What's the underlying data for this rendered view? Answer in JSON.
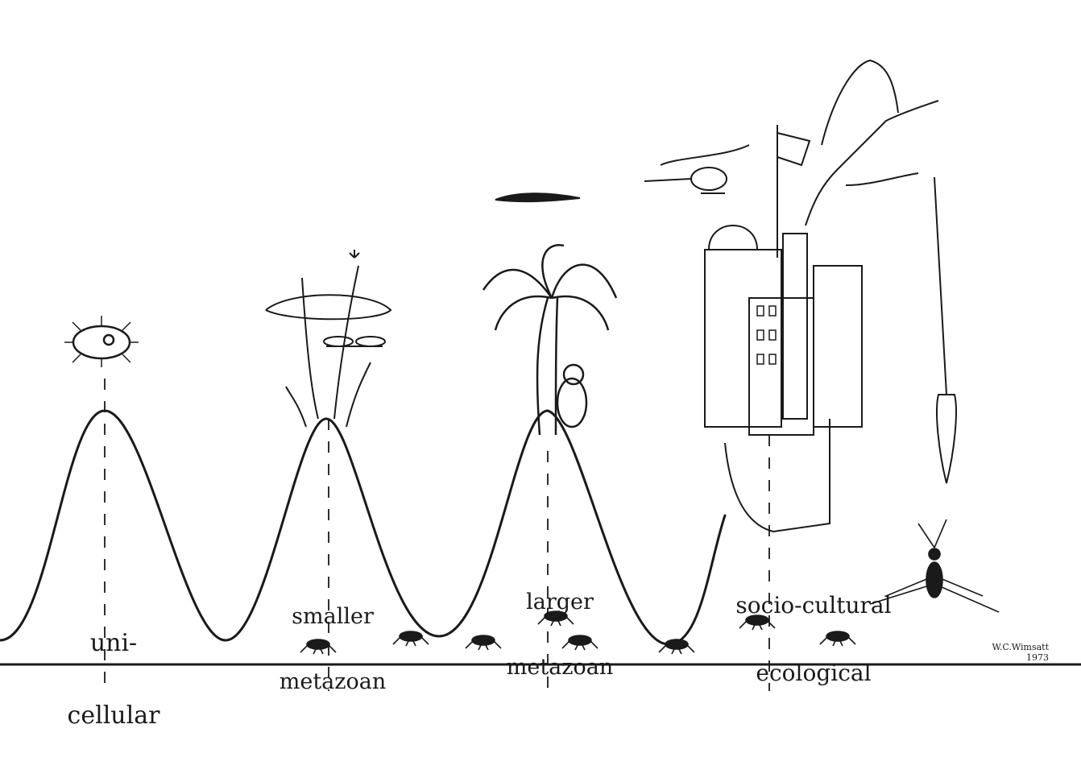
{
  "labels": {
    "unicellular": {
      "line1": "uni-",
      "line2": "cellular"
    },
    "smaller_metazoan": {
      "line1": "smaller",
      "line2": "metazoan"
    },
    "larger_metazoan": {
      "line1": "larger",
      "line2": "metazoan"
    },
    "socio_cultural": {
      "line1": "socio-cultural",
      "line2": "ecological"
    }
  },
  "signature": {
    "name": "W.C.Wimsatt",
    "year": "1973"
  },
  "colors": {
    "ink": "#1a1a1a",
    "paper": "#ffffff"
  }
}
